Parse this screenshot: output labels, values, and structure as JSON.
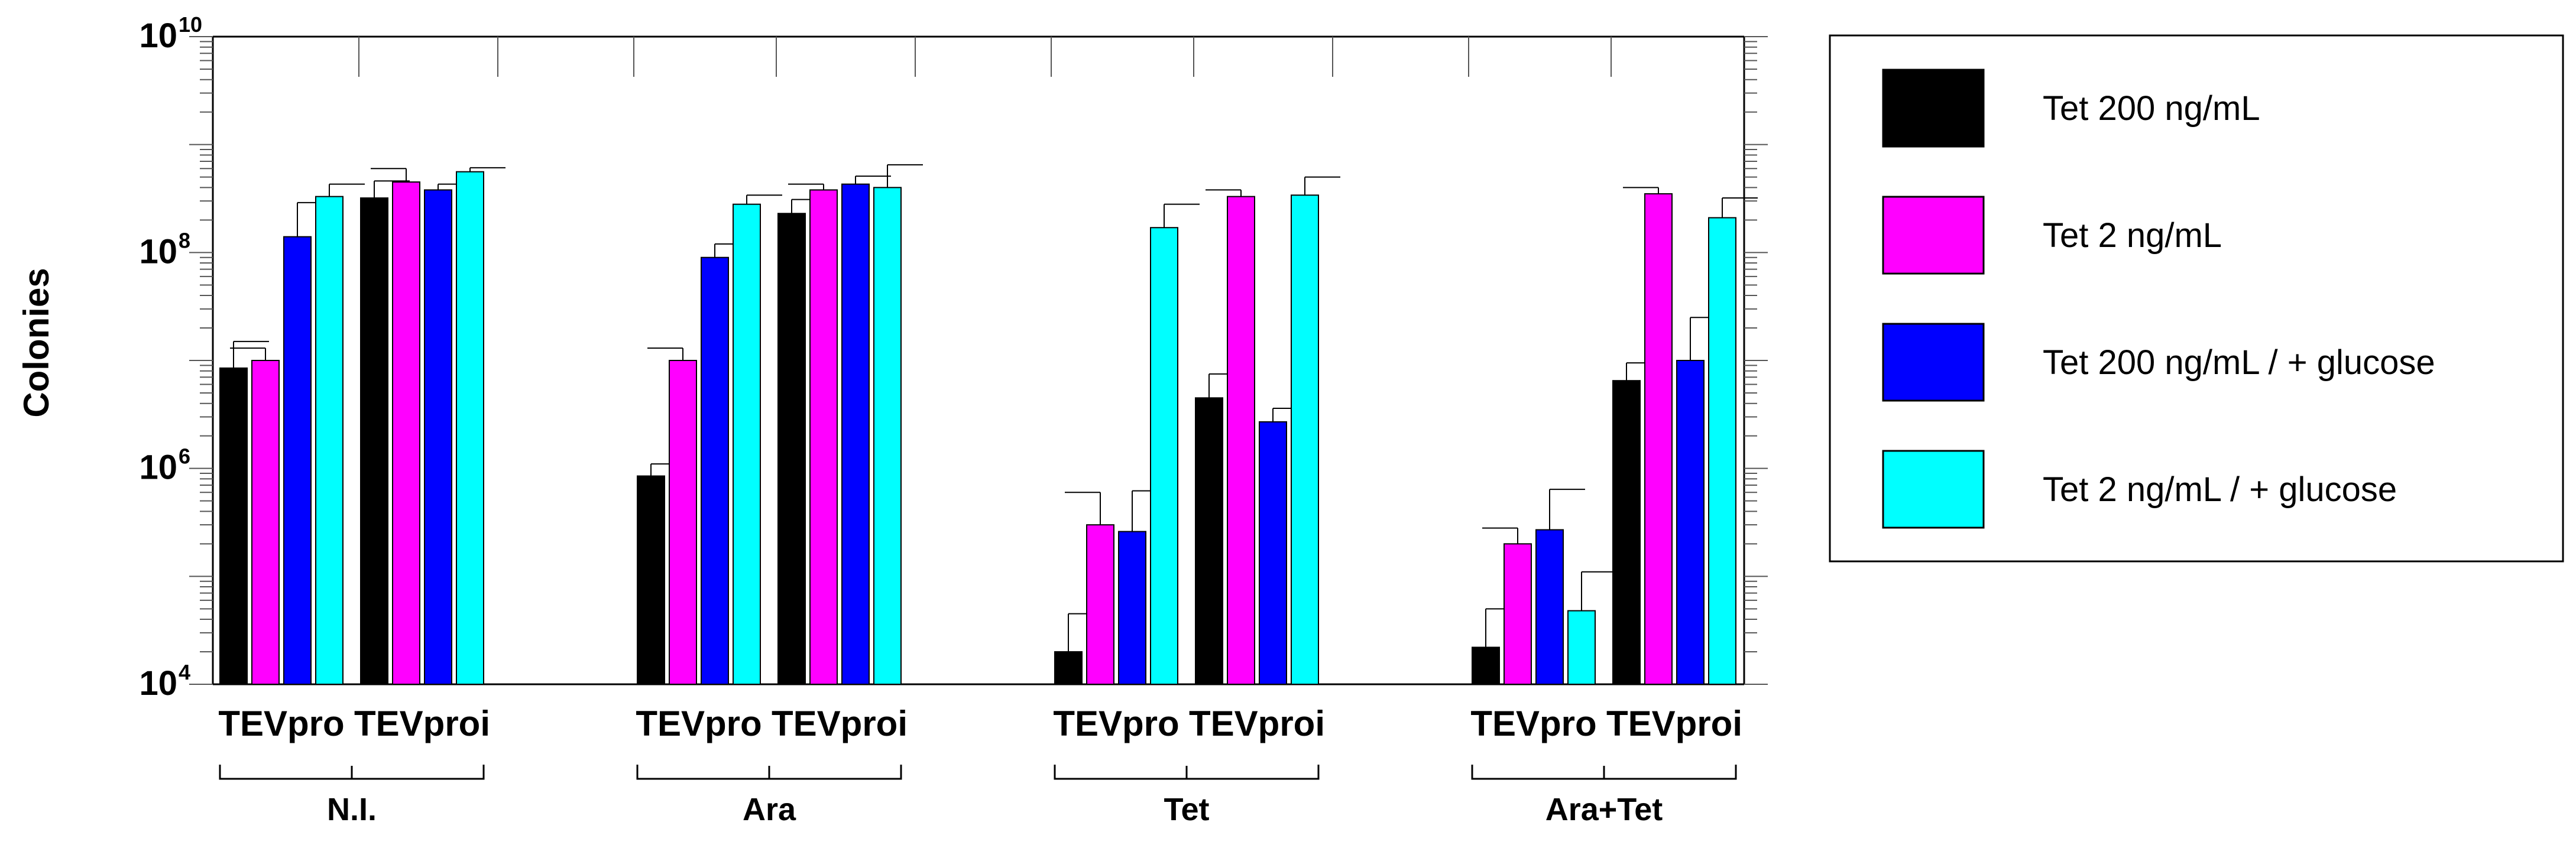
{
  "chart_data": {
    "type": "bar",
    "ylabel": "Colonies",
    "yscale": "log",
    "ylim": [
      10000,
      10000000000
    ],
    "yticks": [
      {
        "base": "10",
        "exp": "4"
      },
      {
        "base": "10",
        "exp": "6"
      },
      {
        "base": "10",
        "exp": "8"
      },
      {
        "base": "10",
        "exp": "10"
      }
    ],
    "grid": false,
    "legend_position": "right",
    "groups": [
      {
        "label": "N.I.",
        "categories": [
          "TEVpro",
          "TEVproi"
        ]
      },
      {
        "label": "Ara",
        "categories": [
          "TEVpro",
          "TEVproi"
        ]
      },
      {
        "label": "Tet",
        "categories": [
          "TEVpro",
          "TEVproi"
        ]
      },
      {
        "label": "Ara+Tet",
        "categories": [
          "TEVpro",
          "TEVproi"
        ]
      }
    ],
    "series": [
      {
        "name": "Tet 200 ng/mL",
        "color": "#000000",
        "values": [
          8500000,
          320000000,
          850000,
          230000000,
          20000,
          4500000,
          22000,
          6500000
        ],
        "errors_upper": [
          15000000,
          460000000,
          1100000,
          310000000,
          45000,
          7500000,
          50000,
          9500000
        ]
      },
      {
        "name": "Tet 2 ng/mL",
        "color": "#FF00FF",
        "values": [
          10000000,
          450000000,
          10000000,
          380000000,
          300000,
          330000000,
          200000,
          350000000
        ],
        "errors_upper": [
          13000000,
          600000000,
          13000000,
          430000000,
          600000,
          380000000,
          280000,
          400000000
        ],
        "error_drawn_left": true
      },
      {
        "name": "Tet 200 ng/mL / + glucose",
        "color": "#0000FF",
        "values": [
          140000000,
          380000000,
          90000000,
          430000000,
          260000,
          2700000,
          270000,
          10000000
        ],
        "errors_upper": [
          290000000,
          430000000,
          120000000,
          510000000,
          620000,
          3600000,
          640000,
          25000000
        ]
      },
      {
        "name": "Tet 2 ng/mL / + glucose",
        "color": "#00FFFF",
        "values": [
          330000000,
          560000000,
          280000000,
          400000000,
          170000000,
          340000000,
          48000,
          210000000
        ],
        "errors_upper": [
          430000000,
          610000000,
          340000000,
          650000000,
          280000000,
          500000000,
          110000,
          320000000
        ]
      }
    ]
  }
}
